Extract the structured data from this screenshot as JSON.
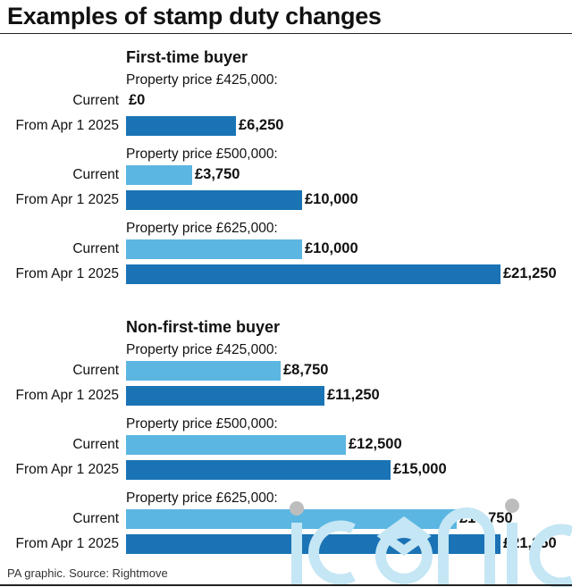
{
  "title": "Examples of stamp duty changes",
  "source": "PA graphic. Source: Rightmove",
  "watermark": "iconic",
  "colors": {
    "current": "#5bb6e2",
    "new": "#1a73b5",
    "watermark": "#c5e6f4"
  },
  "chart_data": {
    "type": "bar",
    "orientation": "horizontal",
    "title": "Examples of stamp duty changes",
    "series_labels": [
      "Current",
      "From Apr 1 2025"
    ],
    "sections": [
      {
        "title": "First-time buyer",
        "groups": [
          {
            "label": "Property price £425,000:",
            "rows": [
              {
                "label": "Current",
                "value": 0,
                "value_label": "£0"
              },
              {
                "label": "From Apr 1 2025",
                "value": 6250,
                "value_label": "£6,250"
              }
            ]
          },
          {
            "label": "Property price £500,000:",
            "rows": [
              {
                "label": "Current",
                "value": 3750,
                "value_label": "£3,750"
              },
              {
                "label": "From Apr 1 2025",
                "value": 10000,
                "value_label": "£10,000"
              }
            ]
          },
          {
            "label": "Property price £625,000:",
            "rows": [
              {
                "label": "Current",
                "value": 10000,
                "value_label": "£10,000"
              },
              {
                "label": "From Apr 1 2025",
                "value": 21250,
                "value_label": "£21,250"
              }
            ]
          }
        ]
      },
      {
        "title": "Non-first-time buyer",
        "groups": [
          {
            "label": "Property price £425,000:",
            "rows": [
              {
                "label": "Current",
                "value": 8750,
                "value_label": "£8,750"
              },
              {
                "label": "From Apr 1 2025",
                "value": 11250,
                "value_label": "£11,250"
              }
            ]
          },
          {
            "label": "Property price £500,000:",
            "rows": [
              {
                "label": "Current",
                "value": 12500,
                "value_label": "£12,500"
              },
              {
                "label": "From Apr 1 2025",
                "value": 15000,
                "value_label": "£15,000"
              }
            ]
          },
          {
            "label": "Property price £625,000:",
            "rows": [
              {
                "label": "Current",
                "value": 18750,
                "value_label": "£18,750"
              },
              {
                "label": "From Apr 1 2025",
                "value": 21250,
                "value_label": "£21,250"
              }
            ]
          }
        ]
      }
    ],
    "value_max": 21250
  }
}
